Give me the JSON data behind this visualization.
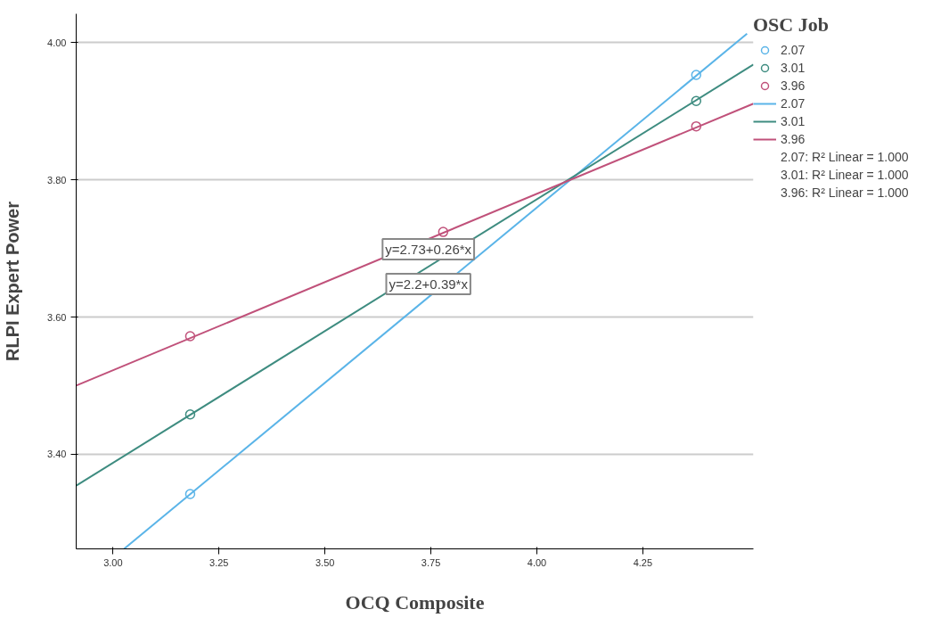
{
  "chart_data": {
    "type": "scatter",
    "xlabel": "OCQ Composite",
    "ylabel": "RLPI Expert Power",
    "legend_title": "OSC Job",
    "xlim": [
      2.913,
      4.511
    ],
    "xticks": [
      {
        "value": 3.0,
        "label": "3.00"
      },
      {
        "value": 3.25,
        "label": "3.25"
      },
      {
        "value": 3.5,
        "label": "3.50"
      },
      {
        "value": 3.75,
        "label": "3.75"
      },
      {
        "value": 4.0,
        "label": "4.00"
      },
      {
        "value": 4.25,
        "label": "4.25"
      }
    ],
    "ylim": [
      3.262,
      4.042
    ],
    "yticks": [
      {
        "value": 3.4,
        "label": "3.40"
      },
      {
        "value": 3.6,
        "label": "3.60"
      },
      {
        "value": 3.8,
        "label": "3.80"
      },
      {
        "value": 4.0,
        "label": "4.00"
      }
    ],
    "grid": "y",
    "legend": "right",
    "series": [
      {
        "name": "2.07",
        "color": "#5ab4e8",
        "marker": "circle",
        "x": [
          3.182,
          4.376
        ],
        "values": [
          3.342,
          3.953
        ]
      },
      {
        "name": "3.01",
        "color": "#3e8c80",
        "marker": "circle",
        "x": [
          3.182,
          4.376
        ],
        "values": [
          3.458,
          3.915
        ]
      },
      {
        "name": "3.96",
        "color": "#c0517a",
        "marker": "circle",
        "x": [
          3.182,
          3.779,
          4.376
        ],
        "values": [
          3.572,
          3.724,
          3.878
        ]
      },
      {
        "name": "2.07",
        "type": "line",
        "color": "#5ab4e8",
        "marker": "none",
        "x": [
          3.026,
          4.496
        ],
        "values": [
          3.262,
          4.013
        ]
      },
      {
        "name": "3.01",
        "type": "line",
        "color": "#3e8c80",
        "marker": "none",
        "x": [
          2.913,
          4.511
        ],
        "values": [
          3.354,
          3.968
        ]
      },
      {
        "name": "3.96",
        "type": "line",
        "color": "#c0517a",
        "marker": "none",
        "x": [
          2.913,
          4.511
        ],
        "values": [
          3.5,
          3.911
        ]
      }
    ],
    "annotations": [
      "y=2.73+0.26*x",
      "y=2.2+0.39*x",
      "2.07: R² Linear = 1.000",
      "3.01: R² Linear = 1.000",
      "3.96: R² Linear = 1.000"
    ]
  }
}
